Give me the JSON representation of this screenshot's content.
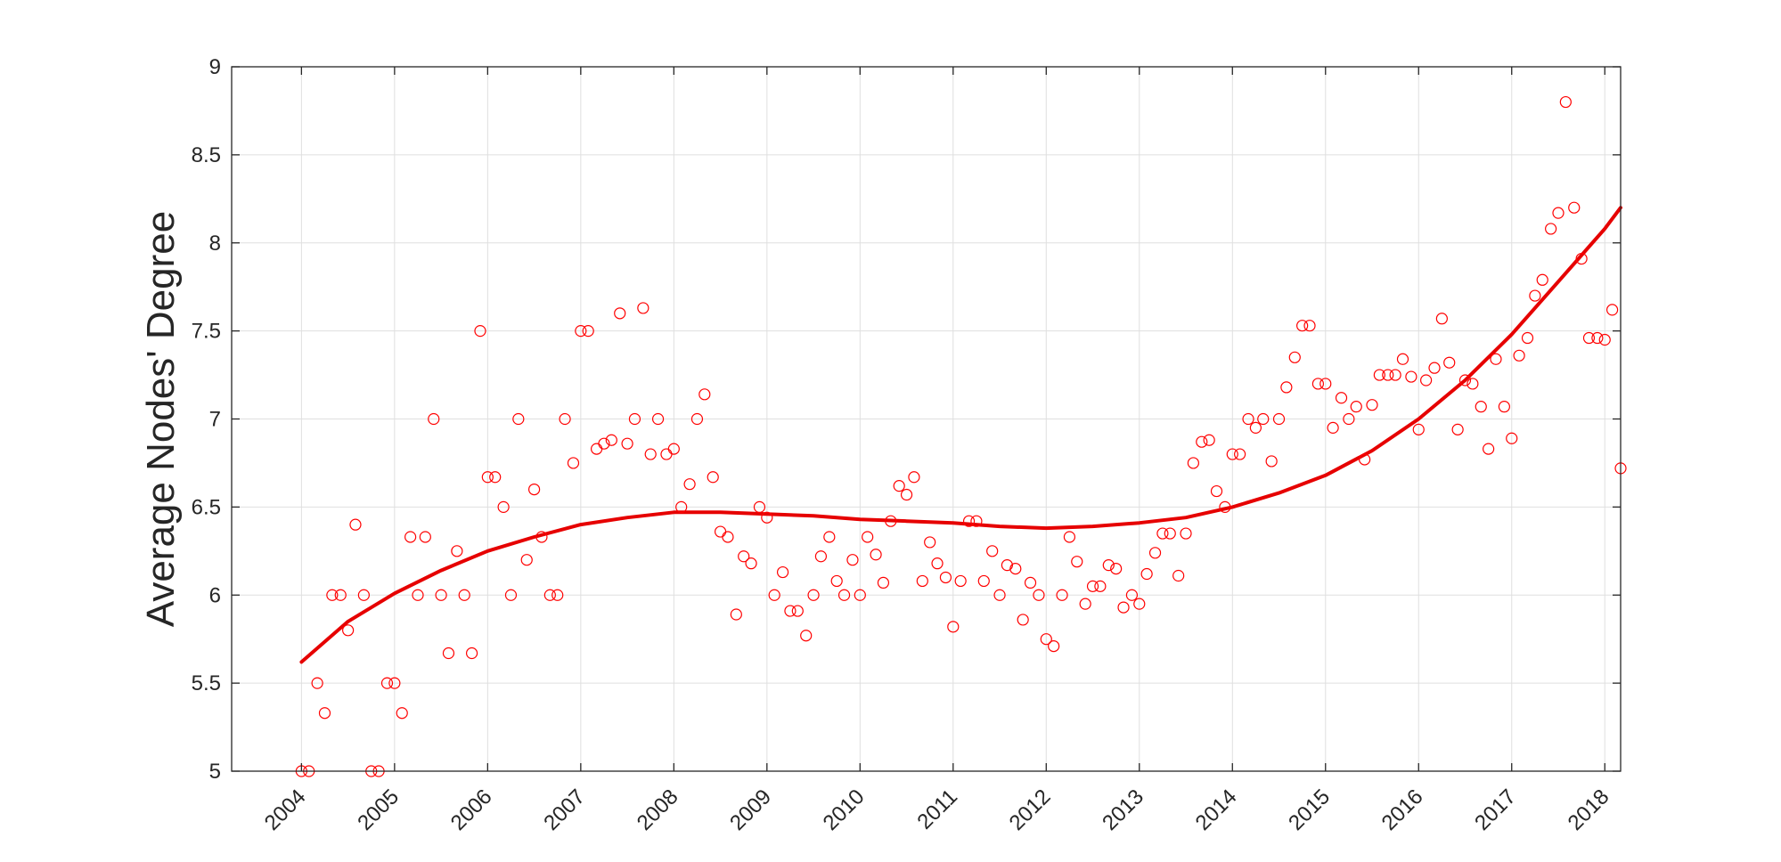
{
  "chart_data": {
    "type": "scatter",
    "title": "",
    "xlabel": "",
    "ylabel": "Average Nodes' Degree",
    "xlim": [
      2003.25,
      2018.17
    ],
    "ylim": [
      5,
      9
    ],
    "grid": true,
    "x_ticks": [
      2004,
      2005,
      2006,
      2007,
      2008,
      2009,
      2010,
      2011,
      2012,
      2013,
      2014,
      2015,
      2016,
      2017,
      2018
    ],
    "y_ticks": [
      5,
      5.5,
      6,
      6.5,
      7,
      7.5,
      8,
      8.5,
      9
    ],
    "colors": {
      "points": "#ff0000",
      "trend": "#e60000"
    },
    "series": [
      {
        "kind": "points",
        "marker": "circle-open",
        "x": [
          2004.0,
          2004.08,
          2004.17,
          2004.25,
          2004.33,
          2004.42,
          2004.5,
          2004.58,
          2004.67,
          2004.75,
          2004.83,
          2004.92,
          2005.0,
          2005.08,
          2005.17,
          2005.25,
          2005.33,
          2005.42,
          2005.5,
          2005.58,
          2005.67,
          2005.75,
          2005.83,
          2005.92,
          2006.0,
          2006.08,
          2006.17,
          2006.25,
          2006.33,
          2006.42,
          2006.5,
          2006.58,
          2006.67,
          2006.75,
          2006.83,
          2006.92,
          2007.0,
          2007.08,
          2007.17,
          2007.25,
          2007.33,
          2007.42,
          2007.5,
          2007.58,
          2007.67,
          2007.75,
          2007.83,
          2007.92,
          2008.0,
          2008.08,
          2008.17,
          2008.25,
          2008.33,
          2008.42,
          2008.5,
          2008.58,
          2008.67,
          2008.75,
          2008.83,
          2008.92,
          2009.0,
          2009.08,
          2009.17,
          2009.25,
          2009.33,
          2009.42,
          2009.5,
          2009.58,
          2009.67,
          2009.75,
          2009.83,
          2009.92,
          2010.0,
          2010.08,
          2010.17,
          2010.25,
          2010.33,
          2010.42,
          2010.5,
          2010.58,
          2010.67,
          2010.75,
          2010.83,
          2010.92,
          2011.0,
          2011.08,
          2011.17,
          2011.25,
          2011.33,
          2011.42,
          2011.5,
          2011.58,
          2011.67,
          2011.75,
          2011.83,
          2011.92,
          2012.0,
          2012.08,
          2012.17,
          2012.25,
          2012.33,
          2012.42,
          2012.5,
          2012.58,
          2012.67,
          2012.75,
          2012.83,
          2012.92,
          2013.0,
          2013.08,
          2013.17,
          2013.25,
          2013.33,
          2013.42,
          2013.5,
          2013.58,
          2013.67,
          2013.75,
          2013.83,
          2013.92,
          2014.0,
          2014.08,
          2014.17,
          2014.25,
          2014.33,
          2014.42,
          2014.5,
          2014.58,
          2014.67,
          2014.75,
          2014.83,
          2014.92,
          2015.0,
          2015.08,
          2015.17,
          2015.25,
          2015.33,
          2015.42,
          2015.5,
          2015.58,
          2015.67,
          2015.75,
          2015.83,
          2015.92,
          2016.0,
          2016.08,
          2016.17,
          2016.25,
          2016.33,
          2016.42,
          2016.5,
          2016.58,
          2016.67,
          2016.75,
          2016.83,
          2016.92,
          2017.0,
          2017.08,
          2017.17,
          2017.25,
          2017.33,
          2017.42,
          2017.5,
          2017.58,
          2017.67,
          2017.75,
          2017.83,
          2017.92,
          2018.0,
          2018.08,
          2018.17
        ],
        "y": [
          5.0,
          5.0,
          5.5,
          5.33,
          6.0,
          6.0,
          5.8,
          6.4,
          6.0,
          5.0,
          5.0,
          5.5,
          5.5,
          5.33,
          6.33,
          6.0,
          6.33,
          7.0,
          6.0,
          5.67,
          6.25,
          6.0,
          5.67,
          7.5,
          6.67,
          6.67,
          6.5,
          6.0,
          7.0,
          6.2,
          6.6,
          6.33,
          6.0,
          6.0,
          7.0,
          6.75,
          7.5,
          7.5,
          6.83,
          6.86,
          6.88,
          7.6,
          6.86,
          7.0,
          7.63,
          6.8,
          7.0,
          6.8,
          6.83,
          6.5,
          6.63,
          7.0,
          7.14,
          6.67,
          6.36,
          6.33,
          5.89,
          6.22,
          6.18,
          6.5,
          6.44,
          6.0,
          6.13,
          5.91,
          5.91,
          5.77,
          6.0,
          6.22,
          6.33,
          6.08,
          6.0,
          6.2,
          6.0,
          6.33,
          6.23,
          6.07,
          6.42,
          6.62,
          6.57,
          6.67,
          6.08,
          6.3,
          6.18,
          6.1,
          5.82,
          6.08,
          6.42,
          6.42,
          6.08,
          6.25,
          6.0,
          6.17,
          6.15,
          5.86,
          6.07,
          6.0,
          5.75,
          5.71,
          6.0,
          6.33,
          6.19,
          5.95,
          6.05,
          6.05,
          6.17,
          6.15,
          5.93,
          6.0,
          5.95,
          6.12,
          6.24,
          6.35,
          6.35,
          6.11,
          6.35,
          6.75,
          6.87,
          6.88,
          6.59,
          6.5,
          6.8,
          6.8,
          7.0,
          6.95,
          7.0,
          6.76,
          7.0,
          7.18,
          7.35,
          7.53,
          7.53,
          7.2,
          7.2,
          6.95,
          7.12,
          7.0,
          7.07,
          6.77,
          7.08,
          7.25,
          7.25,
          7.25,
          7.34,
          7.24,
          6.94,
          7.22,
          7.29,
          7.57,
          7.32,
          6.94,
          7.22,
          7.2,
          7.07,
          6.83,
          7.34,
          7.07,
          6.89,
          7.36,
          7.46,
          7.7,
          7.79,
          8.08,
          8.17,
          8.8,
          8.2,
          7.91,
          7.46,
          7.46,
          7.45,
          7.62,
          6.72
        ]
      },
      {
        "kind": "trend",
        "x": [
          2004.0,
          2004.5,
          2005.0,
          2005.5,
          2006.0,
          2006.5,
          2007.0,
          2007.5,
          2008.0,
          2008.5,
          2009.0,
          2009.5,
          2010.0,
          2010.5,
          2011.0,
          2011.5,
          2012.0,
          2012.5,
          2013.0,
          2013.5,
          2014.0,
          2014.5,
          2015.0,
          2015.5,
          2016.0,
          2016.5,
          2017.0,
          2017.5,
          2018.0,
          2018.17
        ],
        "y": [
          5.62,
          5.85,
          6.01,
          6.14,
          6.25,
          6.33,
          6.4,
          6.44,
          6.47,
          6.47,
          6.46,
          6.45,
          6.43,
          6.42,
          6.41,
          6.39,
          6.38,
          6.39,
          6.41,
          6.44,
          6.5,
          6.58,
          6.68,
          6.82,
          7.0,
          7.22,
          7.48,
          7.78,
          8.08,
          8.2
        ]
      }
    ]
  }
}
